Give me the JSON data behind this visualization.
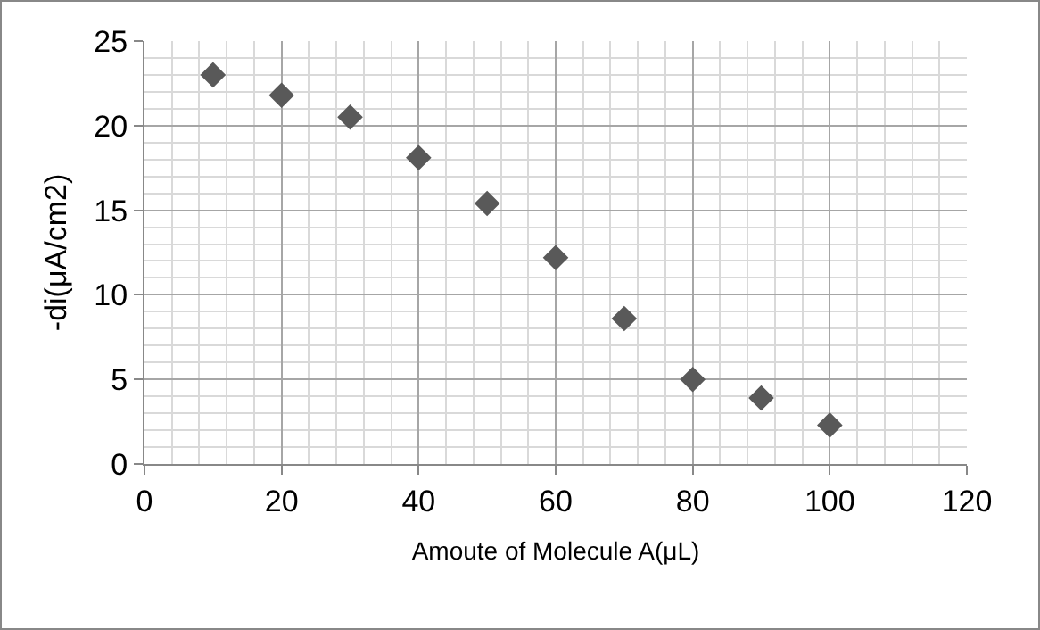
{
  "chart_data": {
    "type": "scatter",
    "xlabel": "Amoute of Molecule A(μL)",
    "ylabel": "-di(μA/cm2)",
    "x": [
      10,
      20,
      30,
      40,
      50,
      60,
      70,
      80,
      90,
      100
    ],
    "series": [
      {
        "color": "#595959",
        "values": [
          23.0,
          21.8,
          20.5,
          18.1,
          15.4,
          12.2,
          8.6,
          5.0,
          3.9,
          2.3
        ]
      }
    ],
    "xlim": [
      0,
      120
    ],
    "xticks": [
      0,
      20,
      40,
      60,
      80,
      100,
      120
    ],
    "ylim": [
      0,
      25
    ],
    "yticks": [
      0,
      5,
      10,
      15,
      20,
      25
    ],
    "grid": true,
    "marker": "diamond"
  }
}
